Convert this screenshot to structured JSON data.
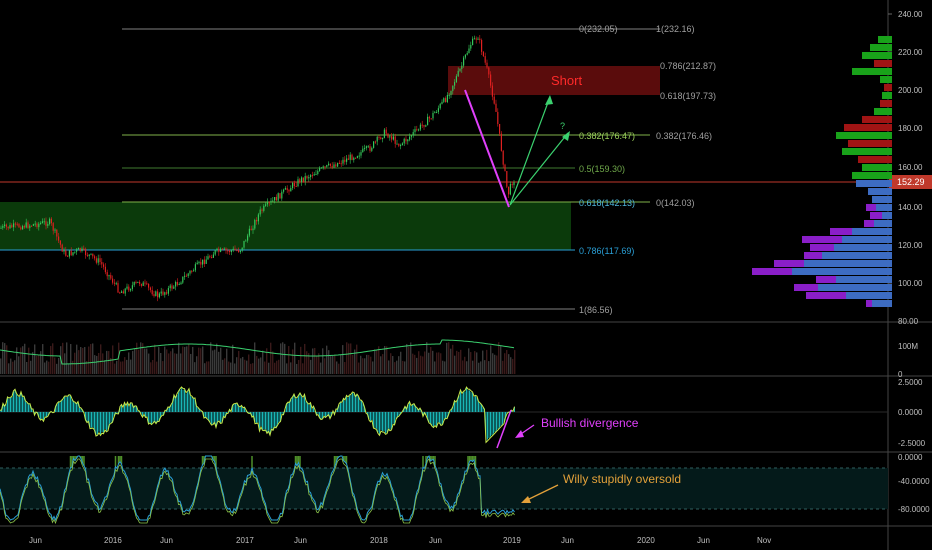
{
  "colors": {
    "background": "#000000",
    "grid": "#2a2a2a",
    "fib_line": "#7f7f7f",
    "fib_green": "#7fb24a",
    "fib_green_dark": "#3f7a2f",
    "fib_blue": "#2a9fd6",
    "zone_green": "#0b3a0b",
    "zone_red": "#5a0c0c",
    "short_text": "#ff2a2a",
    "up_candle": "#34c759",
    "down_candle": "#e02020",
    "price_line": "#c0392b",
    "price_tag": "#c0392b",
    "magenta": "#e040fb",
    "arrow_green": "#3bd16f",
    "willy_arrow": "#e3a13a",
    "volume_profile_blue": "#3d6cc2",
    "volume_profile_purple": "#8a1ec8",
    "volume_profile_green": "#19a21a",
    "volume_profile_red": "#a01414",
    "osc_fill": "#19b5b5",
    "osc_line": "#c6e84a",
    "wr_line": "#2a9fd6",
    "wr_line2": "#8bc34a",
    "axis_text": "#bfbfbf"
  },
  "main_chart": {
    "price_axis_labels": [
      "240.00",
      "220.00",
      "200.00",
      "180.00",
      "160.00",
      "140.00",
      "120.00",
      "100.00",
      "80.00"
    ],
    "current_price": "152.29",
    "fib_levels": [
      {
        "left_label": "0(232.05)",
        "right_label": "1(232.16)",
        "style": "gray"
      },
      {
        "left_label": "",
        "right_label": "0.786(212.87)",
        "style": "gray"
      },
      {
        "left_label": "",
        "right_label": "0.618(197.73)",
        "style": "gray"
      },
      {
        "left_label": "0.382(176.47)",
        "right_label": "0.382(176.46)",
        "style": "green"
      },
      {
        "left_label": "0.5(159.30)",
        "right_label": "",
        "style": "green"
      },
      {
        "left_label": "0.618(142.13)",
        "right_label": "0(142.03)",
        "style": "green_blue"
      },
      {
        "left_label": "0.786(117.69)",
        "right_label": "",
        "style": "blue"
      },
      {
        "left_label": "1(86.56)",
        "right_label": "",
        "style": "gray"
      }
    ],
    "short_label": "Short",
    "question_mark": "?"
  },
  "volume_pane": {
    "axis_labels": [
      "100M",
      "0"
    ]
  },
  "osc_pane": {
    "axis_labels": [
      "2.5000",
      "0.0000",
      "-2.5000"
    ],
    "annotation": "Bullish divergence"
  },
  "willy_pane": {
    "axis_labels": [
      "0.0000",
      "-40.0000",
      "-80.0000"
    ],
    "annotation": "Willy stupidly oversold"
  },
  "time_axis": {
    "labels": [
      "Jun",
      "2016",
      "Jun",
      "2017",
      "Jun",
      "2018",
      "Jun",
      "2019",
      "Jun",
      "2020",
      "Jun",
      "Nov"
    ]
  }
}
